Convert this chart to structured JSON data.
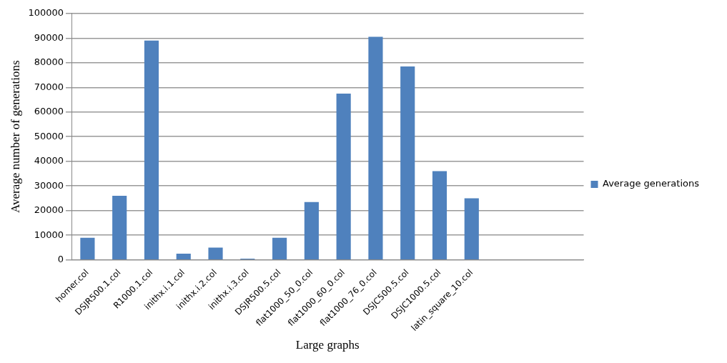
{
  "chart_data": {
    "type": "bar",
    "xlabel": "Large graphs",
    "ylabel": "Average number of generations",
    "categories": [
      "homer.col",
      "DSJR500.1.col",
      "R1000.1.col",
      "inithx.i.1.col",
      "inithx.i.2.col",
      "inithx.i.3.col",
      "DSJR500.5.col",
      "flat1000_50_0.col",
      "flat1000_60_0.col",
      "flat1000_76_0.col",
      "DSJC500.5.col",
      "DSJC1000.5.col",
      "latin_square_10.col",
      null,
      null,
      null
    ],
    "series": [
      {
        "name": "Average generations",
        "color": "#4f81bd",
        "values": [
          9000,
          26000,
          89000,
          2500,
          5000,
          500,
          9000,
          23500,
          67500,
          90500,
          78500,
          36000,
          25000,
          null,
          null,
          null
        ]
      }
    ],
    "ylim": [
      0,
      100000
    ],
    "yticks": [
      0,
      10000,
      20000,
      30000,
      40000,
      50000,
      60000,
      70000,
      80000,
      90000,
      100000
    ],
    "grid": "y",
    "legend": "right"
  }
}
